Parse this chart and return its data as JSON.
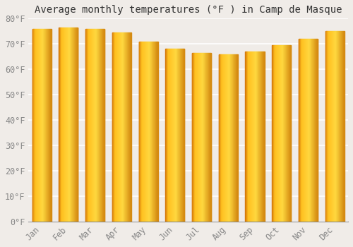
{
  "title": "Average monthly temperatures (°F ) in Camp de Masque",
  "months": [
    "Jan",
    "Feb",
    "Mar",
    "Apr",
    "May",
    "Jun",
    "Jul",
    "Aug",
    "Sep",
    "Oct",
    "Nov",
    "Dec"
  ],
  "values": [
    76.0,
    76.5,
    76.0,
    74.5,
    71.0,
    68.0,
    66.5,
    66.0,
    67.0,
    69.5,
    72.0,
    75.0
  ],
  "bar_color_left": "#D4760A",
  "bar_color_mid": "#FFD040",
  "bar_color_right": "#E89020",
  "ylim": [
    0,
    80
  ],
  "yticks": [
    0,
    10,
    20,
    30,
    40,
    50,
    60,
    70,
    80
  ],
  "ytick_labels": [
    "0°F",
    "10°F",
    "20°F",
    "30°F",
    "40°F",
    "50°F",
    "60°F",
    "70°F",
    "80°F"
  ],
  "background_color": "#f0ece8",
  "plot_bg_color": "#f0ece8",
  "grid_color": "#ffffff",
  "title_fontsize": 10,
  "tick_fontsize": 8.5,
  "tick_color": "#888888"
}
